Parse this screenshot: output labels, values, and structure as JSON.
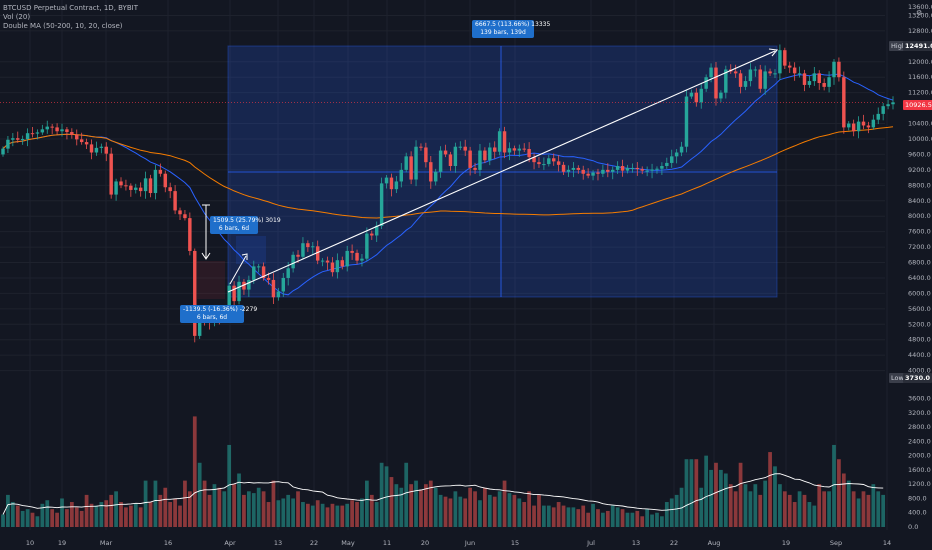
{
  "header": {
    "title": "BTCUSD Perpetual Contract, 1D, BYBIT",
    "vol": "Vol (20)",
    "ma": "Double MA (50-200, 10, 20, close)"
  },
  "price_tags": {
    "high_label": "High",
    "high_value": "12491.0",
    "low_label": "Low",
    "low_value": "3730.0",
    "last_value": "10926.5",
    "top_label": "13600.0"
  },
  "measure_boxes": {
    "big": [
      "6667.5 (113.66%) 13335",
      "139 bars, 139d"
    ],
    "up": [
      "1509.5 (25.79%) 3019",
      "6 bars, 6d"
    ],
    "down": [
      "-1139.5 (-16.36%) -2279",
      "6 bars, 6d"
    ]
  },
  "colors": {
    "bg": "#131722",
    "up": "#26a69a",
    "down": "#ef5350",
    "ma50": "#2962ff",
    "ma200": "#f57c00",
    "vol_ma": "#ffffff",
    "measure": "#2962ff",
    "grid": "#1e222d",
    "text": "#b2b5be"
  },
  "chart_data": {
    "type": "candlestick",
    "x_ticks": [
      "10",
      "19",
      "Mar",
      "16",
      "Apr",
      "13",
      "22",
      "May",
      "11",
      "20",
      "Jun",
      "15",
      "Jul",
      "13",
      "22",
      "Aug",
      "19",
      "Sep",
      "14"
    ],
    "price_axis": {
      "ticks": [
        13200,
        12800,
        12000,
        11600,
        11200,
        10400,
        10000,
        9600,
        9200,
        8800,
        8400,
        8000,
        7600,
        7200,
        6800,
        6400,
        6000,
        5600,
        5200,
        4800,
        4400,
        4000
      ],
      "range": [
        3550,
        13600
      ]
    },
    "volume_axis": {
      "ticks": [
        "3600.0",
        "3200.0",
        "2800.0",
        "2400.0",
        "2000.0",
        "1600.0",
        "1200.0",
        "800.0",
        "400.0",
        "0.0"
      ],
      "range": [
        0,
        3700
      ]
    },
    "series": [
      {
        "name": "Close",
        "values": [
          9750,
          9980,
          10020,
          9980,
          10000,
          10150,
          10140,
          10170,
          10250,
          10320,
          10300,
          10200,
          10250,
          10180,
          10110,
          9990,
          9920,
          9860,
          9650,
          9770,
          9800,
          9620,
          8560,
          8900,
          8800,
          8790,
          8680,
          8740,
          8650,
          8980,
          8600,
          9200,
          9100,
          8750,
          8650,
          8150,
          8050,
          7950,
          7100,
          4900,
          5550,
          5300,
          5250,
          5500,
          5350,
          5520,
          6200,
          5800,
          6300,
          6100,
          6350,
          6700,
          6700,
          6400,
          6350,
          5900,
          6050,
          6400,
          6650,
          7000,
          6950,
          7300,
          7200,
          7220,
          6850,
          6850,
          6800,
          6550,
          6860,
          6700,
          7100,
          7050,
          6850,
          6900,
          7550,
          7500,
          7750,
          8850,
          9000,
          8700,
          8900,
          9200,
          9550,
          8950,
          9800,
          9780,
          9400,
          8900,
          9150,
          9700,
          9600,
          9300,
          9800,
          9800,
          9700,
          9250,
          9200,
          9700,
          9450,
          9780,
          9670,
          10200,
          9650,
          9760,
          9700,
          9750,
          9740,
          9530,
          9400,
          9350,
          9350,
          9500,
          9420,
          9330,
          9150,
          9200,
          9250,
          9200,
          9100,
          9050,
          9130,
          9100,
          9200,
          9150,
          9200,
          9300,
          9180,
          9250,
          9250,
          9220,
          9180,
          9180,
          9210,
          9230,
          9300,
          9380,
          9550,
          9650,
          9800,
          11100,
          11200,
          10950,
          11300,
          11600,
          11850,
          11050,
          11200,
          11800,
          11750,
          11700,
          11350,
          11500,
          11800,
          11800,
          11300,
          11750,
          11700,
          11700,
          12300,
          11900,
          11850,
          11700,
          11700,
          11400,
          11500,
          11700,
          11450,
          11350,
          11600,
          12000,
          11600,
          10300,
          10400,
          10200,
          10450,
          10350,
          10300,
          10500,
          10650,
          10850,
          10900,
          10950
        ]
      }
    ],
    "series_ma": [
      {
        "name": "MA 50"
      },
      {
        "name": "MA 200"
      }
    ],
    "volume": [
      350,
      900,
      700,
      600,
      450,
      500,
      400,
      300,
      650,
      750,
      500,
      400,
      800,
      500,
      700,
      550,
      450,
      900,
      650,
      600,
      700,
      750,
      900,
      1000,
      700,
      550,
      600,
      650,
      550,
      1300,
      700,
      1300,
      900,
      1100,
      700,
      800,
      600,
      1300,
      1000,
      3100,
      1800,
      1300,
      900,
      1200,
      1100,
      1000,
      2300,
      1200,
      1500,
      900,
      1000,
      950,
      1100,
      1000,
      700,
      1300,
      750,
      800,
      900,
      800,
      1000,
      700,
      650,
      600,
      750,
      650,
      550,
      650,
      600,
      600,
      650,
      750,
      700,
      800,
      1300,
      900,
      700,
      1800,
      1700,
      1400,
      1200,
      1100,
      1800,
      1200,
      1300,
      1050,
      1200,
      1300,
      1100,
      900,
      850,
      800,
      1000,
      850,
      800,
      1100,
      1000,
      750,
      1100,
      900,
      850,
      1000,
      1300,
      950,
      900,
      800,
      700,
      1000,
      600,
      900,
      600,
      600,
      550,
      700,
      600,
      550,
      550,
      500,
      600,
      400,
      650,
      500,
      400,
      450,
      600,
      550,
      500,
      400,
      400,
      450,
      300,
      500,
      350,
      400,
      300,
      700,
      800,
      900,
      1100,
      1900,
      1900,
      1900,
      1100,
      2000,
      1600,
      1800,
      1600,
      1500,
      1200,
      1000,
      1800,
      1200,
      1000,
      1200,
      900,
      1300,
      2100,
      1700,
      1200,
      1000,
      900,
      700,
      1000,
      900,
      700,
      600,
      1200,
      1000,
      1000,
      2300,
      1900,
      1500,
      1300,
      1000,
      800,
      1000,
      900,
      1200,
      1000,
      900
    ]
  }
}
